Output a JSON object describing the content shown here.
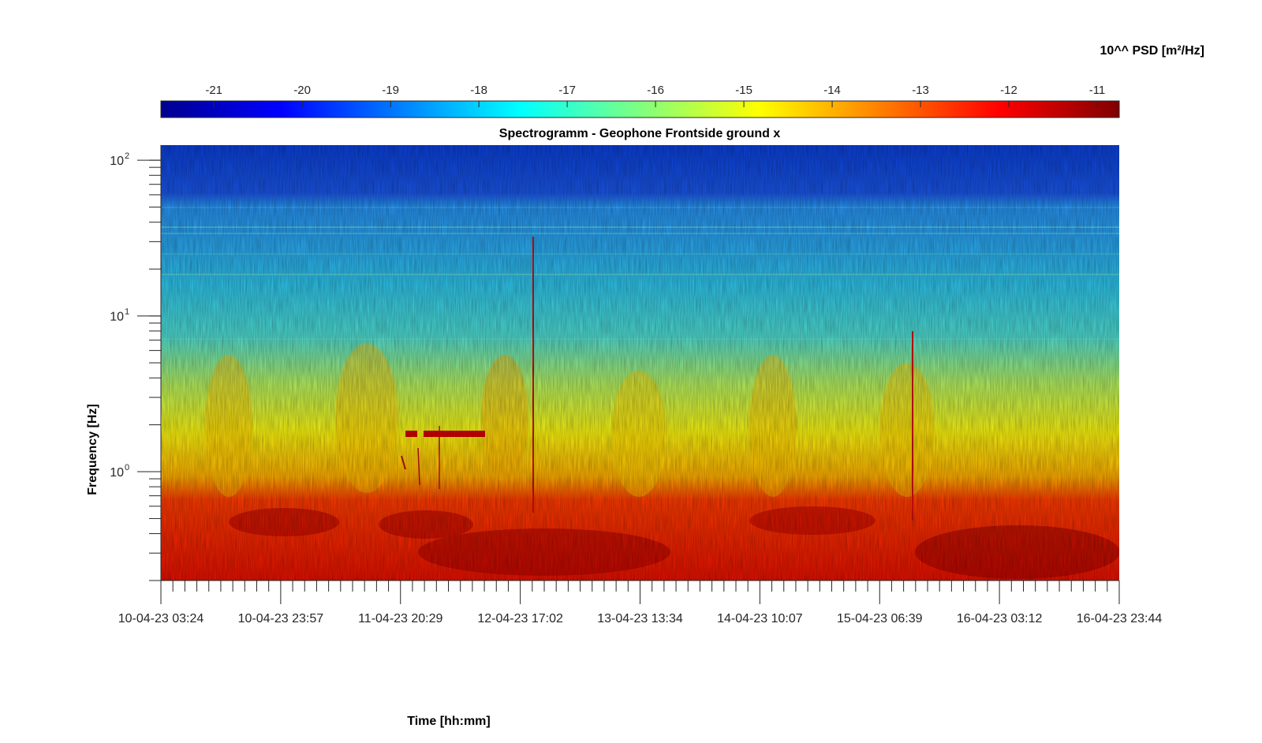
{
  "chart_data": {
    "type": "heatmap",
    "title": "Spectrogramm - Geophone Frontside ground x",
    "xlabel": "Time [hh:mm]",
    "ylabel": "Frequency [Hz]",
    "y_scale": "log",
    "ylim": [
      0.2,
      125
    ],
    "x_tick_labels": [
      "10-04-23 03:24",
      "10-04-23 23:57",
      "11-04-23 20:29",
      "12-04-23 17:02",
      "13-04-23 13:34",
      "14-04-23 10:07",
      "15-04-23 06:39",
      "16-04-23 03:12",
      "16-04-23 23:44"
    ],
    "y_ticks": [
      {
        "base": "10",
        "exp": "0",
        "value": 1
      },
      {
        "base": "10",
        "exp": "1",
        "value": 10
      },
      {
        "base": "10",
        "exp": "2",
        "value": 100
      }
    ],
    "colorbar": {
      "label": "10^^ PSD [m²/Hz]",
      "colormap": "jet",
      "clim": [
        -21.6,
        -10.75
      ],
      "tick_values": [
        -21,
        -20,
        -19,
        -18,
        -17,
        -16,
        -15,
        -14,
        -13,
        -12,
        -11
      ],
      "tick_labels": [
        "-21",
        "-20",
        "-19",
        "-18",
        "-17",
        "-16",
        "-15",
        "-14",
        "-13",
        "-12",
        "-11"
      ]
    },
    "frequency_profile_log10_psd": [
      {
        "f": 0.2,
        "psd": -11.4
      },
      {
        "f": 0.5,
        "psd": -11.6
      },
      {
        "f": 0.65,
        "psd": -12.6
      },
      {
        "f": 0.9,
        "psd": -14.4
      },
      {
        "f": 2.0,
        "psd": -15.2
      },
      {
        "f": 4.0,
        "psd": -16.5
      },
      {
        "f": 6.0,
        "psd": -17.4
      },
      {
        "f": 10,
        "psd": -17.8
      },
      {
        "f": 20,
        "psd": -18.3
      },
      {
        "f": 50,
        "psd": -18.9
      },
      {
        "f": 70,
        "psd": -19.8
      },
      {
        "f": 125,
        "psd": -20.0
      }
    ]
  }
}
